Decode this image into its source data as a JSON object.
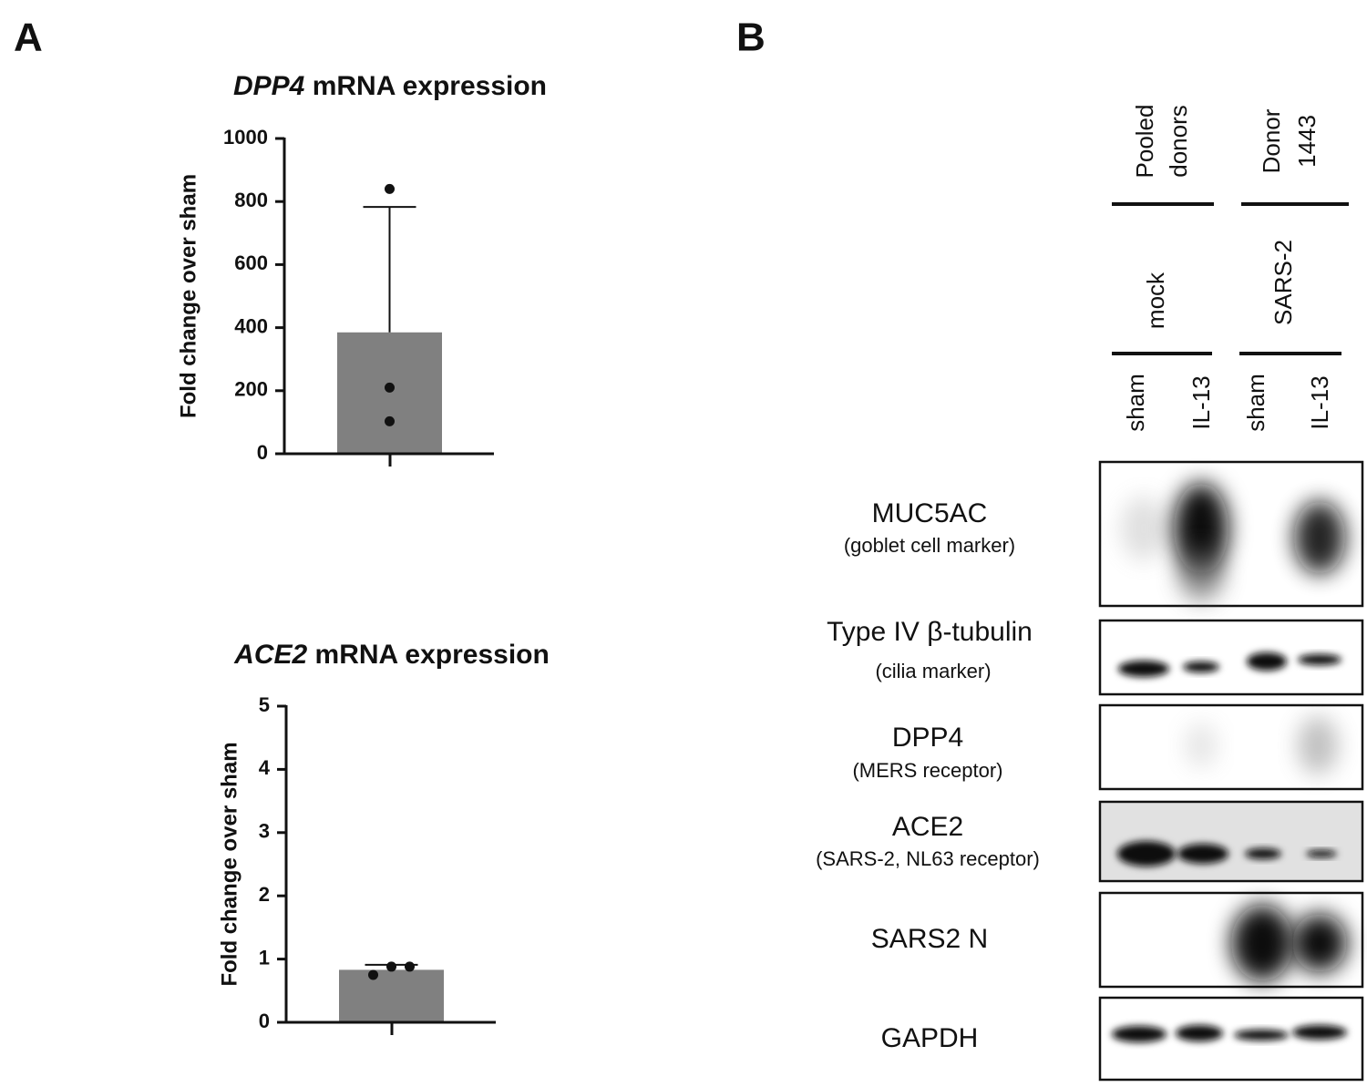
{
  "panels": {
    "a": "A",
    "b": "B"
  },
  "chart_data": [
    {
      "type": "bar",
      "title": {
        "gene": "DPP4",
        "text": "mRNA expression"
      },
      "ylabel": "Fold change over sham",
      "categories": [
        null
      ],
      "values": [
        385
      ],
      "error": [
        398
      ],
      "points": [
        840,
        210,
        103
      ],
      "color": "#808080",
      "ylim": [
        0,
        1000
      ],
      "yticks": [
        0,
        200,
        400,
        600,
        800,
        1000
      ]
    },
    {
      "type": "bar",
      "title": {
        "gene": "ACE2",
        "text": "mRNA expression"
      },
      "ylabel": "Fold change over sham",
      "categories": [
        null
      ],
      "values": [
        0.83
      ],
      "error": [
        0.08
      ],
      "points": [
        0.75,
        0.88,
        0.88
      ],
      "color": "#808080",
      "ylim": [
        0,
        5
      ],
      "yticks": [
        0,
        1,
        2,
        3,
        4,
        5
      ]
    }
  ],
  "blot": {
    "groups": [
      [
        "Pooled",
        "donors"
      ],
      [
        "Donor",
        "1443"
      ]
    ],
    "conditions": [
      "mock",
      "SARS-2"
    ],
    "lanes": [
      "sham",
      "IL-13",
      "sham",
      "IL-13"
    ],
    "rows": [
      {
        "name": "MUC5AC",
        "note": "(goblet cell marker)"
      },
      {
        "name": "Type IV β-tubulin",
        "note": "(cilia marker)"
      },
      {
        "name": "DPP4",
        "note": "(MERS receptor)"
      },
      {
        "name": "ACE2",
        "note": "(SARS-2, NL63 receptor)"
      },
      {
        "name": "SARS2 N"
      },
      {
        "name": "GAPDH"
      }
    ]
  }
}
